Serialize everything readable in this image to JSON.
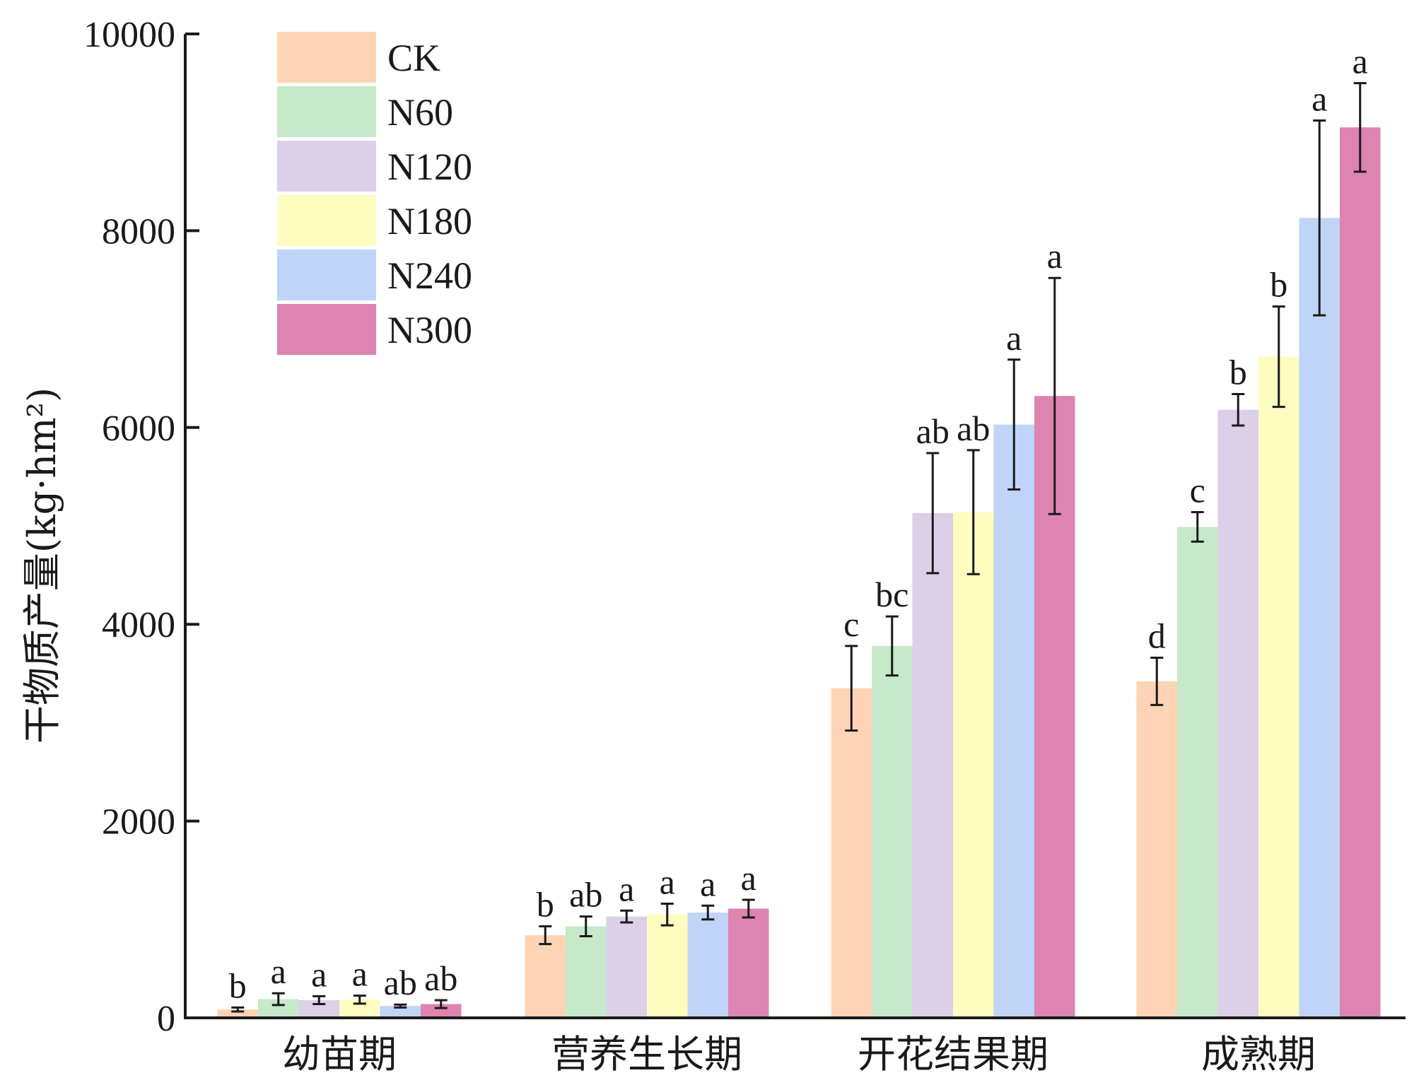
{
  "chart_data": {
    "type": "bar",
    "ylabel": "干物质产量(kg·hm²)",
    "xlabel": "",
    "ylim": [
      0,
      10000
    ],
    "yticks": [
      0,
      2000,
      4000,
      6000,
      8000,
      10000
    ],
    "categories": [
      "幼苗期",
      "营养生长期",
      "开花结果期",
      "成熟期"
    ],
    "legend_position": "top-left",
    "grid": false,
    "series": [
      {
        "name": "CK",
        "color": "#fdd4b5",
        "values": [
          85,
          840,
          3350,
          3420
        ],
        "errors": [
          20,
          90,
          430,
          240
        ],
        "labels": [
          "b",
          "b",
          "c",
          "d"
        ]
      },
      {
        "name": "N60",
        "color": "#c6e9c9",
        "values": [
          190,
          930,
          3780,
          4990
        ],
        "errors": [
          60,
          100,
          300,
          150
        ],
        "labels": [
          "a",
          "ab",
          "bc",
          "c"
        ]
      },
      {
        "name": "N120",
        "color": "#dccfe8",
        "values": [
          180,
          1030,
          5130,
          6180
        ],
        "errors": [
          40,
          60,
          610,
          160
        ],
        "labels": [
          "a",
          "a",
          "ab",
          "b"
        ]
      },
      {
        "name": "N180",
        "color": "#fefcbf",
        "values": [
          185,
          1050,
          5140,
          6720
        ],
        "errors": [
          40,
          110,
          630,
          510
        ],
        "labels": [
          "a",
          "a",
          "ab",
          "b"
        ]
      },
      {
        "name": "N240",
        "color": "#bfd4f6",
        "values": [
          120,
          1070,
          6030,
          8130
        ],
        "errors": [
          15,
          70,
          660,
          990
        ],
        "labels": [
          "ab",
          "a",
          "a",
          "a"
        ]
      },
      {
        "name": "N300",
        "color": "#dd84b1",
        "values": [
          140,
          1110,
          6320,
          9050
        ],
        "errors": [
          40,
          90,
          1200,
          450
        ],
        "labels": [
          "ab",
          "a",
          "a",
          "a"
        ]
      }
    ]
  }
}
